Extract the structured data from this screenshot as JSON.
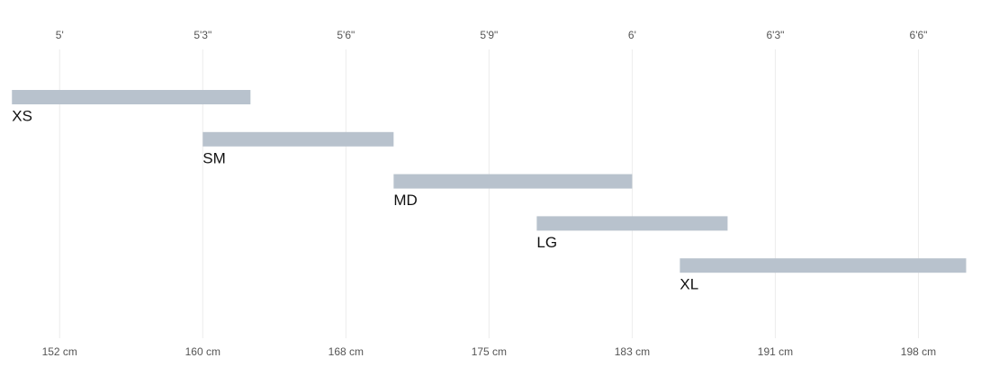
{
  "chart_data": {
    "type": "range-bar",
    "categories": [
      "XS",
      "SM",
      "MD",
      "LG",
      "XL"
    ],
    "values": [
      [
        59,
        64
      ],
      [
        63,
        67
      ],
      [
        67,
        72
      ],
      [
        70,
        74
      ],
      [
        73,
        79
      ]
    ],
    "color": "#b8c2cd",
    "xlim": [
      58.75,
      79.5
    ],
    "xticks": [
      {
        "value": 60,
        "label": "5'"
      },
      {
        "value": 63,
        "label": "5'3\""
      },
      {
        "value": 66,
        "label": "5'6\""
      },
      {
        "value": 69,
        "label": "5'9\""
      },
      {
        "value": 72,
        "label": "6'"
      },
      {
        "value": 75,
        "label": "6'3\""
      },
      {
        "value": 78,
        "label": "6'6\""
      }
    ],
    "x2ticks": [
      {
        "value": 60,
        "label": "152 cm"
      },
      {
        "value": 63,
        "label": "160 cm"
      },
      {
        "value": 66,
        "label": "168 cm"
      },
      {
        "value": 69,
        "label": "175 cm"
      },
      {
        "value": 72,
        "label": "183 cm"
      },
      {
        "value": 75,
        "label": "191 cm"
      },
      {
        "value": 78,
        "label": "198 cm"
      }
    ],
    "grid": true
  }
}
